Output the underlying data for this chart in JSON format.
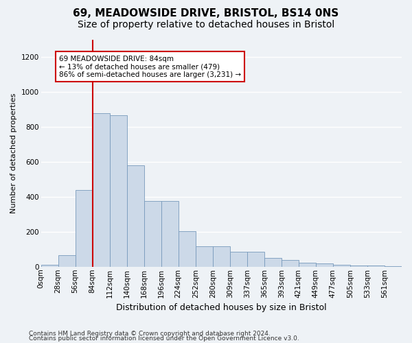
{
  "title": "69, MEADOWSIDE DRIVE, BRISTOL, BS14 0NS",
  "subtitle": "Size of property relative to detached houses in Bristol",
  "xlabel": "Distribution of detached houses by size in Bristol",
  "ylabel": "Number of detached properties",
  "bar_color": "#ccd9e8",
  "bar_edge_color": "#7799bb",
  "vline_color": "#cc0000",
  "vline_x_index": 3,
  "annotation_text": "69 MEADOWSIDE DRIVE: 84sqm\n← 13% of detached houses are smaller (479)\n86% of semi-detached houses are larger (3,231) →",
  "annotation_box_color": "#ffffff",
  "annotation_box_edge": "#cc0000",
  "categories": [
    "0sqm",
    "28sqm",
    "56sqm",
    "84sqm",
    "112sqm",
    "140sqm",
    "168sqm",
    "196sqm",
    "224sqm",
    "252sqm",
    "280sqm",
    "309sqm",
    "337sqm",
    "365sqm",
    "393sqm",
    "421sqm",
    "449sqm",
    "477sqm",
    "505sqm",
    "533sqm",
    "561sqm"
  ],
  "values": [
    12,
    65,
    440,
    880,
    865,
    580,
    375,
    375,
    205,
    115,
    115,
    85,
    85,
    50,
    40,
    22,
    18,
    10,
    8,
    5,
    3
  ],
  "ylim": [
    0,
    1300
  ],
  "yticks": [
    0,
    200,
    400,
    600,
    800,
    1000,
    1200
  ],
  "footer1": "Contains HM Land Registry data © Crown copyright and database right 2024.",
  "footer2": "Contains public sector information licensed under the Open Government Licence v3.0.",
  "background_color": "#eef2f6",
  "grid_color": "#ffffff",
  "title_fontsize": 11,
  "subtitle_fontsize": 10,
  "xlabel_fontsize": 9,
  "ylabel_fontsize": 8,
  "tick_fontsize": 7.5,
  "footer_fontsize": 6.5
}
